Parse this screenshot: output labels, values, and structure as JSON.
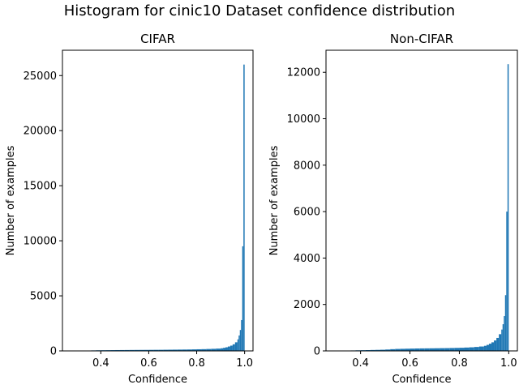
{
  "figure": {
    "suptitle": "Histogram for cinic10 Dataset confidence distribution",
    "bar_color": "#1f77b4"
  },
  "chart_data": [
    {
      "type": "bar",
      "title": "CIFAR",
      "xlabel": "Confidence",
      "ylabel": "Number of examples",
      "xlim": [
        0.24,
        1.035
      ],
      "ylim": [
        0,
        27300
      ],
      "xticks": [
        0.4,
        0.6,
        0.8,
        1.0
      ],
      "xtick_labels": [
        "0.4",
        "0.6",
        "0.8",
        "1.0"
      ],
      "yticks": [
        0,
        5000,
        10000,
        15000,
        20000,
        25000
      ],
      "ytick_labels": [
        "0",
        "5000",
        "10000",
        "15000",
        "20000",
        "25000"
      ],
      "grid": false,
      "bins": {
        "x": [
          0.34,
          0.36,
          0.38,
          0.4,
          0.42,
          0.44,
          0.46,
          0.48,
          0.5,
          0.52,
          0.54,
          0.56,
          0.58,
          0.6,
          0.62,
          0.64,
          0.66,
          0.68,
          0.7,
          0.72,
          0.74,
          0.76,
          0.78,
          0.8,
          0.82,
          0.84,
          0.86,
          0.88,
          0.9,
          0.91,
          0.92,
          0.93,
          0.94,
          0.95,
          0.96,
          0.97,
          0.975,
          0.98,
          0.985,
          0.99,
          0.995
        ],
        "width": [
          0.02,
          0.02,
          0.02,
          0.02,
          0.02,
          0.02,
          0.02,
          0.02,
          0.02,
          0.02,
          0.02,
          0.02,
          0.02,
          0.02,
          0.02,
          0.02,
          0.02,
          0.02,
          0.02,
          0.02,
          0.02,
          0.02,
          0.02,
          0.02,
          0.02,
          0.02,
          0.02,
          0.02,
          0.01,
          0.01,
          0.01,
          0.01,
          0.01,
          0.01,
          0.01,
          0.005,
          0.005,
          0.005,
          0.005,
          0.005,
          0.005
        ],
        "values": [
          30,
          45,
          55,
          60,
          65,
          70,
          75,
          78,
          82,
          85,
          88,
          90,
          92,
          95,
          98,
          100,
          105,
          110,
          115,
          120,
          125,
          130,
          140,
          150,
          160,
          175,
          190,
          210,
          240,
          280,
          330,
          400,
          480,
          600,
          780,
          1050,
          1400,
          1900,
          2800,
          9500,
          26000
        ]
      }
    },
    {
      "type": "bar",
      "title": "Non-CIFAR",
      "xlabel": "Confidence",
      "ylabel": "Number of examples",
      "xlim": [
        0.26,
        1.035
      ],
      "ylim": [
        0,
        12950
      ],
      "xticks": [
        0.4,
        0.6,
        0.8,
        1.0
      ],
      "xtick_labels": [
        "0.4",
        "0.6",
        "0.8",
        "1.0"
      ],
      "yticks": [
        0,
        2000,
        4000,
        6000,
        8000,
        10000,
        12000
      ],
      "ytick_labels": [
        "0",
        "2000",
        "4000",
        "6000",
        "8000",
        "10000",
        "12000"
      ],
      "grid": false,
      "bins": {
        "x": [
          0.32,
          0.34,
          0.36,
          0.38,
          0.4,
          0.42,
          0.44,
          0.46,
          0.48,
          0.5,
          0.52,
          0.54,
          0.56,
          0.58,
          0.6,
          0.62,
          0.64,
          0.66,
          0.68,
          0.7,
          0.72,
          0.74,
          0.76,
          0.78,
          0.8,
          0.82,
          0.84,
          0.86,
          0.88,
          0.9,
          0.91,
          0.92,
          0.93,
          0.94,
          0.95,
          0.96,
          0.97,
          0.975,
          0.98,
          0.985,
          0.99,
          0.995
        ],
        "width": [
          0.02,
          0.02,
          0.02,
          0.02,
          0.02,
          0.02,
          0.02,
          0.02,
          0.02,
          0.02,
          0.02,
          0.02,
          0.02,
          0.02,
          0.02,
          0.02,
          0.02,
          0.02,
          0.02,
          0.02,
          0.02,
          0.02,
          0.02,
          0.02,
          0.02,
          0.02,
          0.02,
          0.02,
          0.02,
          0.01,
          0.01,
          0.01,
          0.01,
          0.01,
          0.01,
          0.01,
          0.005,
          0.005,
          0.005,
          0.005,
          0.005,
          0.005
        ],
        "values": [
          10,
          15,
          20,
          25,
          30,
          35,
          40,
          45,
          50,
          60,
          75,
          85,
          90,
          95,
          100,
          105,
          108,
          110,
          112,
          115,
          118,
          120,
          125,
          130,
          135,
          145,
          155,
          170,
          190,
          220,
          260,
          310,
          370,
          450,
          560,
          720,
          920,
          1150,
          1500,
          2400,
          6000,
          12350
        ]
      }
    }
  ]
}
